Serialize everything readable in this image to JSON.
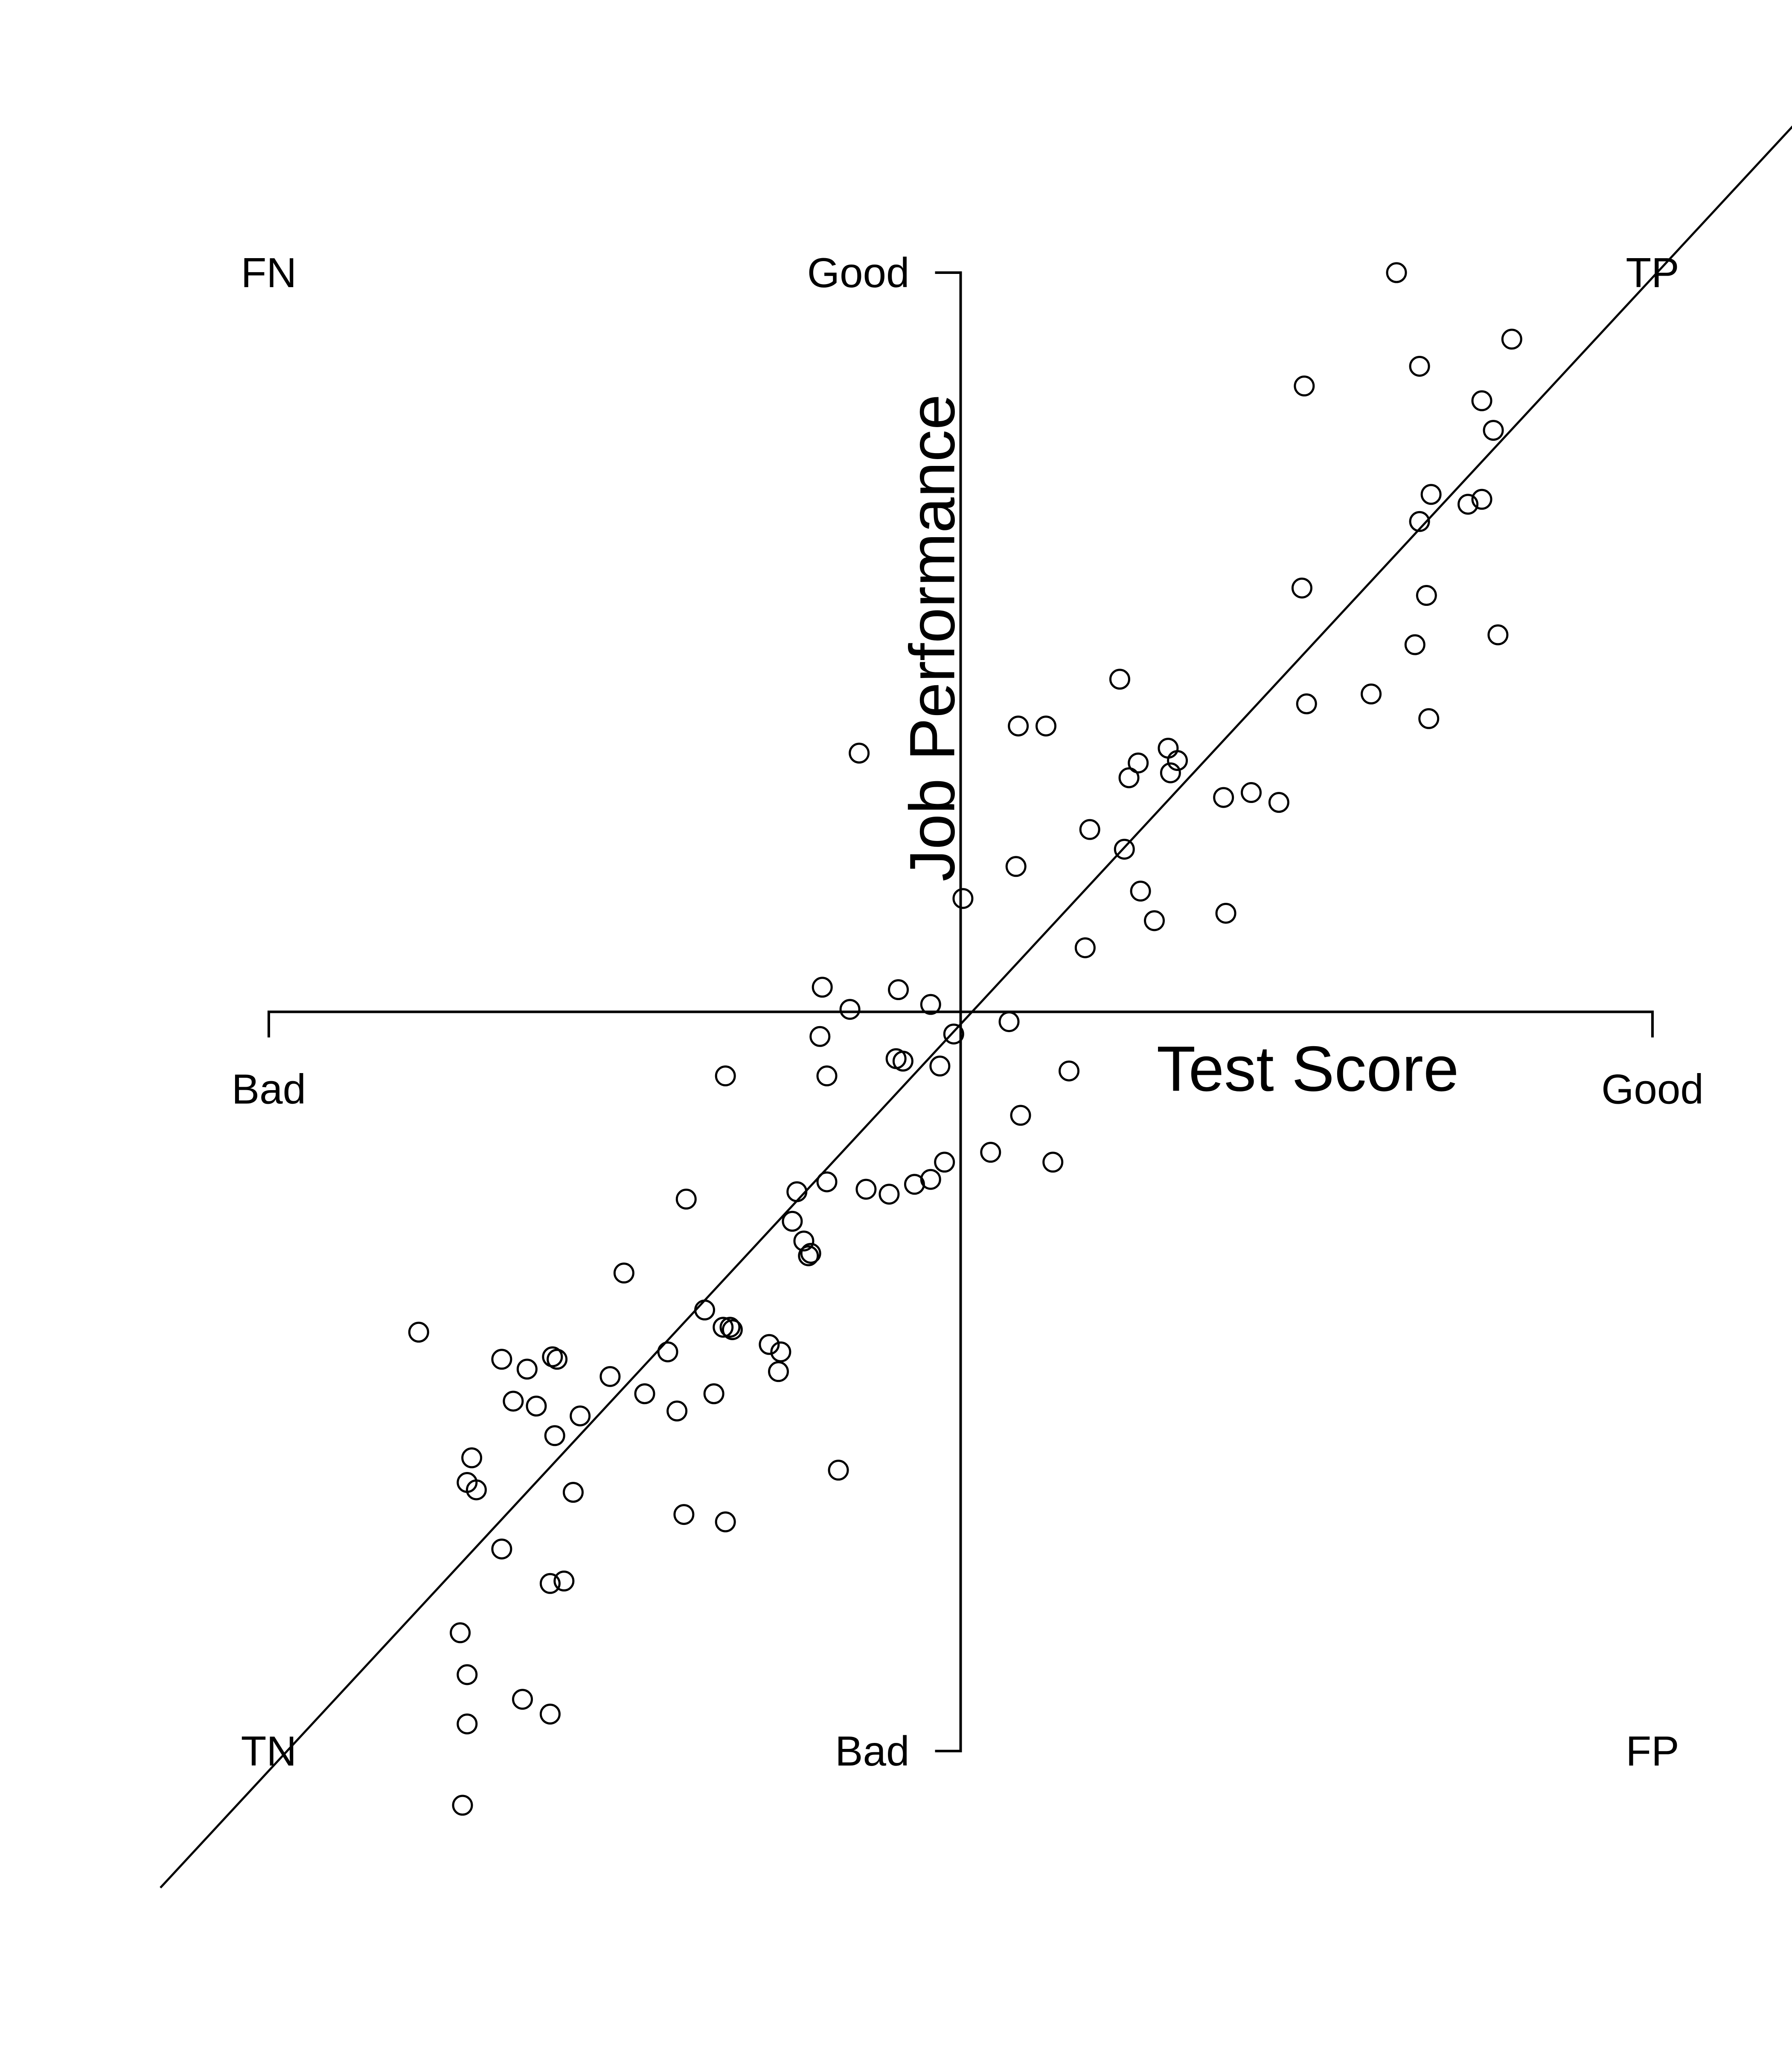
{
  "chart_data": {
    "type": "scatter",
    "x_axis": {
      "title": "Test Score",
      "low_label": "Bad",
      "high_label": "Good",
      "range": [
        -3.0,
        3.0
      ]
    },
    "y_axis": {
      "title": "Job Performance",
      "low_label": "Bad",
      "high_label": "Good",
      "range": [
        -3.0,
        3.0
      ]
    },
    "quadrant_labels": {
      "top_left": "FN",
      "top_right": "TP",
      "bottom_left": "TN",
      "bottom_right": "FP"
    },
    "regression_line": {
      "slope": 1.01,
      "intercept": -0.05
    },
    "grid": false,
    "series": [
      {
        "points": [
          [
            1.89,
            3.0
          ],
          [
            1.99,
            2.62
          ],
          [
            2.39,
            2.73
          ],
          [
            1.49,
            2.54
          ],
          [
            2.26,
            2.48
          ],
          [
            2.31,
            2.36
          ],
          [
            2.04,
            2.1
          ],
          [
            1.99,
            1.99
          ],
          [
            2.2,
            2.06
          ],
          [
            2.26,
            2.08
          ],
          [
            1.48,
            1.72
          ],
          [
            2.02,
            1.69
          ],
          [
            2.33,
            1.53
          ],
          [
            1.97,
            1.49
          ],
          [
            1.5,
            1.25
          ],
          [
            1.78,
            1.29
          ],
          [
            2.03,
            1.19
          ],
          [
            0.69,
            1.35
          ],
          [
            0.25,
            1.16
          ],
          [
            0.37,
            1.16
          ],
          [
            -0.44,
            1.05
          ],
          [
            0.9,
            1.07
          ],
          [
            0.77,
            1.01
          ],
          [
            0.73,
            0.95
          ],
          [
            0.94,
            1.02
          ],
          [
            0.91,
            0.97
          ],
          [
            1.26,
            0.89
          ],
          [
            1.38,
            0.85
          ],
          [
            1.14,
            0.87
          ],
          [
            0.56,
            0.74
          ],
          [
            0.71,
            0.66
          ],
          [
            0.24,
            0.59
          ],
          [
            0.01,
            0.46
          ],
          [
            0.78,
            0.49
          ],
          [
            0.84,
            0.37
          ],
          [
            1.15,
            0.4
          ],
          [
            0.54,
            0.26
          ],
          [
            -0.6,
            0.1
          ],
          [
            -0.27,
            0.09
          ],
          [
            -0.48,
            0.01
          ],
          [
            -0.13,
            0.03
          ],
          [
            0.21,
            -0.04
          ],
          [
            -0.03,
            -0.09
          ],
          [
            -0.61,
            -0.1
          ],
          [
            -0.28,
            -0.19
          ],
          [
            -0.25,
            -0.2
          ],
          [
            -0.09,
            -0.22
          ],
          [
            -1.02,
            -0.26
          ],
          [
            -0.58,
            -0.26
          ],
          [
            0.47,
            -0.24
          ],
          [
            0.26,
            -0.42
          ],
          [
            0.13,
            -0.57
          ],
          [
            0.4,
            -0.61
          ],
          [
            -0.07,
            -0.61
          ],
          [
            -0.13,
            -0.68
          ],
          [
            -0.2,
            -0.7
          ],
          [
            -0.31,
            -0.74
          ],
          [
            -0.41,
            -0.72
          ],
          [
            -0.58,
            -0.69
          ],
          [
            -0.71,
            -0.73
          ],
          [
            -1.19,
            -0.76
          ],
          [
            -0.73,
            -0.85
          ],
          [
            -0.68,
            -0.93
          ],
          [
            -0.65,
            -0.98
          ],
          [
            -0.66,
            -0.99
          ],
          [
            -1.46,
            -1.06
          ],
          [
            -2.35,
            -1.3
          ],
          [
            -1.11,
            -1.21
          ],
          [
            -1.0,
            -1.28
          ],
          [
            -1.03,
            -1.28
          ],
          [
            -1.77,
            -1.4
          ],
          [
            -1.75,
            -1.41
          ],
          [
            -1.99,
            -1.41
          ],
          [
            -1.88,
            -1.45
          ],
          [
            -1.52,
            -1.48
          ],
          [
            -1.27,
            -1.38
          ],
          [
            -0.99,
            -1.29
          ],
          [
            -1.07,
            -1.55
          ],
          [
            -0.83,
            -1.35
          ],
          [
            -0.78,
            -1.38
          ],
          [
            -0.79,
            -1.46
          ],
          [
            -1.94,
            -1.58
          ],
          [
            -1.84,
            -1.6
          ],
          [
            -1.65,
            -1.64
          ],
          [
            -1.23,
            -1.62
          ],
          [
            -1.37,
            -1.55
          ],
          [
            -1.76,
            -1.72
          ],
          [
            -2.12,
            -1.81
          ],
          [
            -2.1,
            -1.94
          ],
          [
            -2.14,
            -1.91
          ],
          [
            -1.68,
            -1.95
          ],
          [
            -1.2,
            -2.04
          ],
          [
            -1.02,
            -2.07
          ],
          [
            -0.53,
            -1.86
          ],
          [
            -1.99,
            -2.18
          ],
          [
            -1.78,
            -2.32
          ],
          [
            -1.72,
            -2.31
          ],
          [
            -2.17,
            -2.52
          ],
          [
            -2.14,
            -2.69
          ],
          [
            -1.9,
            -2.79
          ],
          [
            -1.78,
            -2.85
          ],
          [
            -2.14,
            -2.89
          ],
          [
            -2.16,
            -3.22
          ]
        ]
      }
    ]
  }
}
